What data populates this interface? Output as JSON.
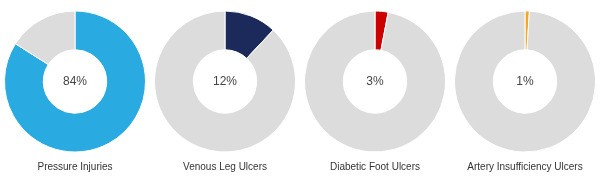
{
  "chart_data": [
    {
      "type": "doughnut",
      "xlabel": "Pressure Injuries",
      "values": [
        84,
        16
      ],
      "colors": [
        "#29ABE2",
        "#DCDCDC"
      ],
      "annotation": "84%"
    },
    {
      "type": "doughnut",
      "xlabel": "Venous Leg Ulcers",
      "values": [
        12,
        88
      ],
      "colors": [
        "#1B2A5A",
        "#DCDCDC"
      ],
      "annotation": "12%"
    },
    {
      "type": "doughnut",
      "xlabel": "Diabetic Foot Ulcers",
      "values": [
        3,
        97
      ],
      "colors": [
        "#CC0000",
        "#DCDCDC"
      ],
      "annotation": "3%"
    },
    {
      "type": "doughnut",
      "xlabel": "Artery Insufficiency Ulcers",
      "values": [
        1,
        99
      ],
      "colors": [
        "#F5A623",
        "#DCDCDC"
      ],
      "annotation": "1%"
    }
  ]
}
